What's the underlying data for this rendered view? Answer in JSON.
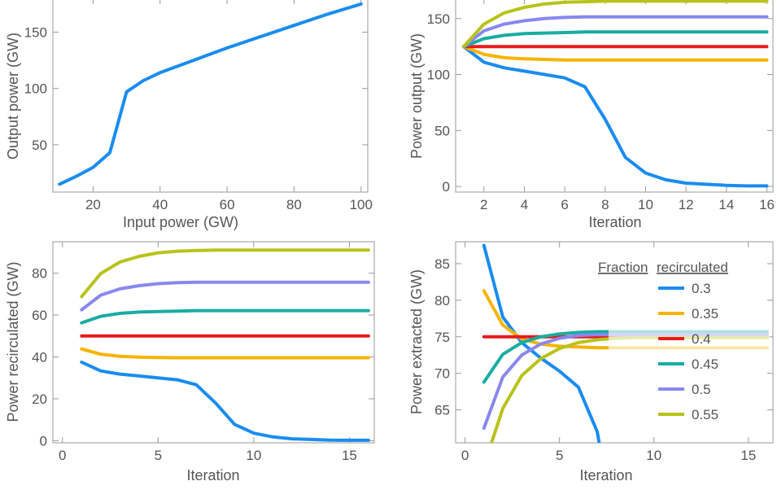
{
  "chart_data": [
    {
      "type": "line",
      "xlabel": "Input power (GW)",
      "ylabel": "Output power (GW)",
      "xlim": [
        8,
        102
      ],
      "ylim": [
        8,
        180
      ],
      "xticks": [
        20,
        40,
        60,
        80,
        100
      ],
      "yticks": [
        50,
        100,
        150
      ],
      "series": [
        {
          "color": "#1a8cf0",
          "x": [
            10,
            15,
            20,
            25,
            30,
            35,
            40,
            50,
            60,
            70,
            80,
            90,
            100
          ],
          "y": [
            15,
            22,
            30,
            43,
            97,
            107,
            114,
            125,
            136,
            146,
            156,
            166,
            175
          ]
        }
      ]
    },
    {
      "type": "line",
      "xlabel": "Iteration",
      "ylabel": "Power output (GW)",
      "xlim": [
        0.6,
        16.3
      ],
      "ylim": [
        -5,
        168
      ],
      "xticks": [
        2,
        4,
        6,
        8,
        10,
        12,
        14,
        16
      ],
      "yticks": [
        0,
        50,
        100,
        150
      ],
      "series": [
        {
          "color": "#1a8cf0",
          "x": [
            1,
            2,
            3,
            4,
            5,
            6,
            7,
            8,
            9,
            10,
            11,
            12,
            13,
            14,
            15,
            16
          ],
          "y": [
            125,
            111,
            106,
            103,
            100,
            97,
            89,
            60,
            26,
            12,
            6,
            3,
            2,
            1,
            0.5,
            0.5
          ]
        },
        {
          "color": "#f5b400",
          "x": [
            1,
            2,
            3,
            4,
            5,
            6,
            7,
            8,
            9,
            10,
            11,
            12,
            13,
            14,
            15,
            16
          ],
          "y": [
            125,
            118,
            115,
            114,
            113.5,
            113,
            113,
            113,
            113,
            113,
            113,
            113,
            113,
            113,
            113,
            113
          ]
        },
        {
          "color": "#e81a1a",
          "x": [
            1,
            2,
            3,
            4,
            5,
            6,
            7,
            8,
            9,
            10,
            11,
            12,
            13,
            14,
            15,
            16
          ],
          "y": [
            125,
            125,
            125,
            125,
            125,
            125,
            125,
            125,
            125,
            125,
            125,
            125,
            125,
            125,
            125,
            125
          ]
        },
        {
          "color": "#1aaca0",
          "x": [
            1,
            2,
            3,
            4,
            5,
            6,
            7,
            8,
            9,
            10,
            11,
            12,
            13,
            14,
            15,
            16
          ],
          "y": [
            125,
            132,
            135,
            136.5,
            137,
            137.5,
            138,
            138,
            138,
            138,
            138,
            138,
            138,
            138,
            138,
            138
          ]
        },
        {
          "color": "#8888f0",
          "x": [
            1,
            2,
            3,
            4,
            5,
            6,
            7,
            8,
            9,
            10,
            11,
            12,
            13,
            14,
            15,
            16
          ],
          "y": [
            125,
            139,
            145,
            148,
            150,
            151,
            151.5,
            151.5,
            151.5,
            151.5,
            151.5,
            151.5,
            151.5,
            151.5,
            151.5,
            151.5
          ]
        },
        {
          "color": "#b8c21a",
          "x": [
            1,
            2,
            3,
            4,
            5,
            6,
            7,
            8,
            9,
            10,
            11,
            12,
            13,
            14,
            15,
            16
          ],
          "y": [
            125,
            145,
            155,
            160,
            163,
            164.5,
            165,
            165.5,
            165.5,
            165.5,
            165.5,
            165.5,
            165.5,
            165.5,
            165.5,
            165.5
          ]
        }
      ]
    },
    {
      "type": "line",
      "xlabel": "Iteration",
      "ylabel": "Power recirculated (GW)",
      "xlim": [
        -0.5,
        16.3
      ],
      "ylim": [
        -1,
        95
      ],
      "xticks": [
        0,
        5,
        10,
        15
      ],
      "yticks": [
        0,
        20,
        40,
        60,
        80
      ],
      "series": [
        {
          "color": "#1a8cf0",
          "x": [
            1,
            2,
            3,
            4,
            5,
            6,
            7,
            8,
            9,
            10,
            11,
            12,
            13,
            14,
            15,
            16
          ],
          "y": [
            37.5,
            33.3,
            31.8,
            30.9,
            30,
            29.1,
            26.7,
            18,
            7.8,
            3.6,
            1.8,
            0.9,
            0.6,
            0.3,
            0.2,
            0.2
          ]
        },
        {
          "color": "#f5b400",
          "x": [
            1,
            2,
            3,
            4,
            5,
            6,
            7,
            8,
            9,
            10,
            11,
            12,
            13,
            14,
            15,
            16
          ],
          "y": [
            43.8,
            41.3,
            40.3,
            39.9,
            39.7,
            39.6,
            39.6,
            39.6,
            39.6,
            39.6,
            39.6,
            39.6,
            39.6,
            39.6,
            39.6,
            39.6
          ]
        },
        {
          "color": "#e81a1a",
          "x": [
            1,
            2,
            3,
            4,
            5,
            6,
            7,
            8,
            9,
            10,
            11,
            12,
            13,
            14,
            15,
            16
          ],
          "y": [
            50,
            50,
            50,
            50,
            50,
            50,
            50,
            50,
            50,
            50,
            50,
            50,
            50,
            50,
            50,
            50
          ]
        },
        {
          "color": "#1aaca0",
          "x": [
            1,
            2,
            3,
            4,
            5,
            6,
            7,
            8,
            9,
            10,
            11,
            12,
            13,
            14,
            15,
            16
          ],
          "y": [
            56.3,
            59.4,
            60.8,
            61.4,
            61.7,
            61.9,
            62.1,
            62.1,
            62.1,
            62.1,
            62.1,
            62.1,
            62.1,
            62.1,
            62.1,
            62.1
          ]
        },
        {
          "color": "#8888f0",
          "x": [
            1,
            2,
            3,
            4,
            5,
            6,
            7,
            8,
            9,
            10,
            11,
            12,
            13,
            14,
            15,
            16
          ],
          "y": [
            62.5,
            69.5,
            72.5,
            74,
            75,
            75.5,
            75.7,
            75.7,
            75.7,
            75.7,
            75.7,
            75.7,
            75.7,
            75.7,
            75.7,
            75.7
          ]
        },
        {
          "color": "#b8c21a",
          "x": [
            1,
            2,
            3,
            4,
            5,
            6,
            7,
            8,
            9,
            10,
            11,
            12,
            13,
            14,
            15,
            16
          ],
          "y": [
            68.8,
            79.8,
            85.3,
            88,
            89.7,
            90.5,
            90.8,
            91,
            91,
            91,
            91,
            91,
            91,
            91,
            91,
            91
          ]
        }
      ]
    },
    {
      "type": "line",
      "xlabel": "Iteration",
      "ylabel": "Power extracted (GW)",
      "xlim": [
        -0.5,
        16.3
      ],
      "ylim": [
        60.5,
        88
      ],
      "xticks": [
        0,
        5,
        10,
        15
      ],
      "yticks": [
        65,
        70,
        75,
        80,
        85
      ],
      "legend": {
        "title_left": "Fraction",
        "title_right": "recirculated",
        "position": "top-right",
        "entries": [
          "0.3",
          "0.35",
          "0.4",
          "0.45",
          "0.5",
          "0.55"
        ]
      },
      "series": [
        {
          "color": "#1a8cf0",
          "x": [
            1,
            2,
            3,
            4,
            5,
            6,
            7,
            7.1
          ],
          "y": [
            87.5,
            77.7,
            74.2,
            72.1,
            70.3,
            68.1,
            62,
            60.5
          ]
        },
        {
          "color": "#f5b400",
          "x": [
            1,
            2,
            3,
            4,
            5,
            6,
            7,
            8,
            9,
            10,
            11,
            12,
            13,
            14,
            15,
            16
          ],
          "y": [
            81.3,
            76.6,
            74.7,
            74,
            73.7,
            73.6,
            73.5,
            73.5,
            73.5,
            73.5,
            73.5,
            73.5,
            73.5,
            73.5,
            73.5,
            73.5
          ]
        },
        {
          "color": "#e81a1a",
          "x": [
            1,
            2,
            3,
            4,
            5,
            6,
            7,
            8,
            9,
            10,
            11,
            12,
            13,
            14,
            15,
            16
          ],
          "y": [
            75,
            75,
            75,
            75,
            75,
            75,
            75,
            75,
            75,
            75,
            75,
            75,
            75,
            75,
            75,
            75
          ]
        },
        {
          "color": "#1aaca0",
          "x": [
            1,
            2,
            3,
            4,
            5,
            6,
            7,
            8,
            9,
            10,
            11,
            12,
            13,
            14,
            15,
            16
          ],
          "y": [
            68.8,
            72.6,
            74.2,
            75,
            75.4,
            75.6,
            75.7,
            75.7,
            75.7,
            75.7,
            75.7,
            75.7,
            75.7,
            75.7,
            75.7,
            75.7
          ]
        },
        {
          "color": "#8888f0",
          "x": [
            1,
            2,
            3,
            4,
            5,
            6,
            7,
            8,
            9,
            10,
            11,
            12,
            13,
            14,
            15,
            16
          ],
          "y": [
            62.5,
            69.5,
            72.5,
            74,
            74.8,
            75.2,
            75.3,
            75.3,
            75.3,
            75.3,
            75.3,
            75.3,
            75.3,
            75.3,
            75.3,
            75.3
          ]
        },
        {
          "color": "#b8c21a",
          "x": [
            1.4,
            2,
            3,
            4,
            5,
            6,
            7,
            8,
            9,
            10,
            11,
            12,
            13,
            14,
            15,
            16
          ],
          "y": [
            60.5,
            65.2,
            69.7,
            72,
            73.4,
            74.2,
            74.6,
            74.8,
            74.9,
            74.9,
            74.9,
            74.9,
            74.9,
            74.9,
            74.9,
            74.9
          ]
        }
      ]
    }
  ]
}
